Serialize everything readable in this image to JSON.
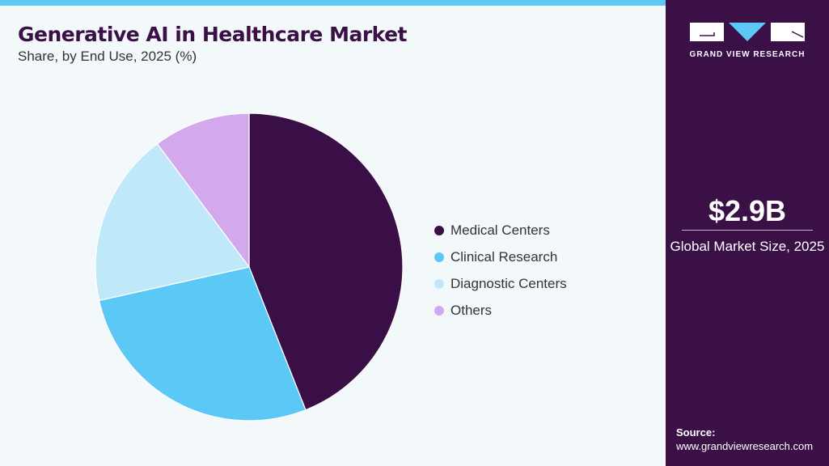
{
  "title": "Generative AI in Healthcare Market",
  "subtitle": "Share, by End Use, 2025 (%)",
  "chart_data": {
    "type": "pie",
    "title": "Generative AI in Healthcare Market",
    "subtitle": "Share, by End Use, 2025 (%)",
    "categories": [
      "Medical Centers",
      "Clinical Research",
      "Diagnostic Centers",
      "Others"
    ],
    "values": [
      44.0,
      27.5,
      18.3,
      10.2
    ],
    "colors": [
      "#3a0f47",
      "#5bc8f5",
      "#bfe9f9",
      "#d3a8ec"
    ],
    "start_angle": "12 o'clock, clockwise",
    "legend_position": "right"
  },
  "side": {
    "logo_text": "GRAND VIEW RESEARCH",
    "market_size": "$2.9B",
    "market_label": "Global Market Size, 2025",
    "source_label": "Source:",
    "source_url": "www.grandviewresearch.com"
  }
}
